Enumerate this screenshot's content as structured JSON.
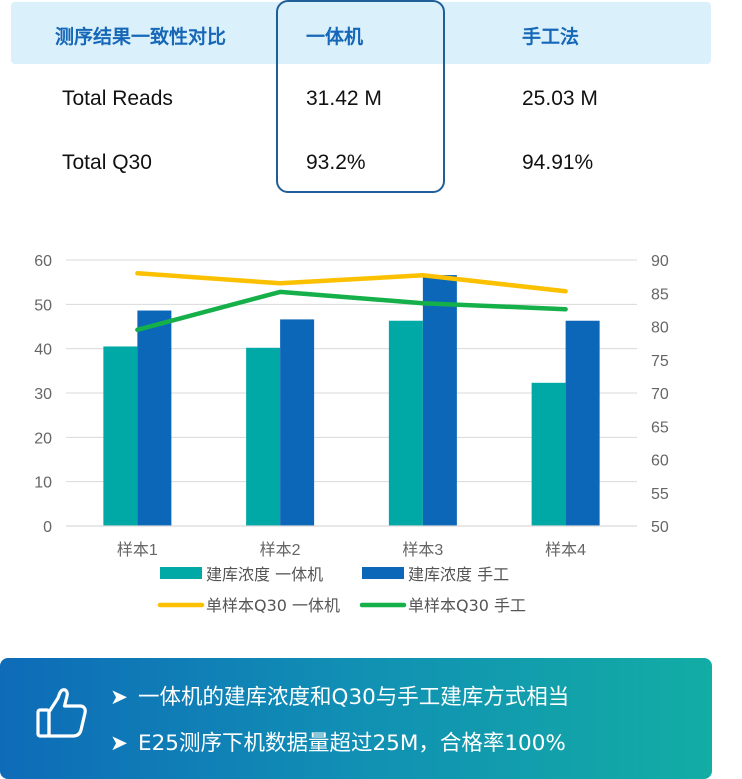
{
  "table": {
    "headers": [
      "测序结果一致性对比",
      "一体机",
      "手工法"
    ],
    "rows": [
      [
        "Total Reads",
        "31.42 M",
        "25.03 M"
      ],
      [
        "Total Q30",
        "93.2%",
        "94.91%"
      ]
    ]
  },
  "chart_data": {
    "type": "bar",
    "categories": [
      "样本1",
      "样本2",
      "样本3",
      "样本4"
    ],
    "ylim": [
      0,
      60
    ],
    "y_ticks": [
      0,
      10,
      20,
      30,
      40,
      50,
      60
    ],
    "y2lim": [
      50,
      90
    ],
    "y2_ticks": [
      50,
      55,
      60,
      65,
      70,
      75,
      80,
      85,
      90
    ],
    "grid": true,
    "legend_position": "bottom",
    "series": [
      {
        "name": "建库浓度 一体机",
        "kind": "bar",
        "axis": "left",
        "color": "#00a9a5",
        "values": [
          40.5,
          40.2,
          46.3,
          32.3
        ]
      },
      {
        "name": "建库浓度 手工",
        "kind": "bar",
        "axis": "left",
        "color": "#0c67b8",
        "values": [
          48.6,
          46.6,
          56.6,
          46.3
        ]
      },
      {
        "name": "单样本Q30 一体机",
        "kind": "line",
        "axis": "right",
        "color": "#fbc000",
        "values": [
          88.0,
          86.5,
          87.7,
          85.3
        ]
      },
      {
        "name": "单样本Q30 手工",
        "kind": "line",
        "axis": "right",
        "color": "#15b04a",
        "values": [
          79.5,
          85.2,
          83.5,
          82.6
        ]
      }
    ]
  },
  "footer": {
    "icon": "thumbs-up-icon",
    "arrow": "➤",
    "lines": [
      "一体机的建库浓度和Q30与手工建库方式相当",
      "E25测序下机数据量超过25M，合格率100%"
    ]
  }
}
